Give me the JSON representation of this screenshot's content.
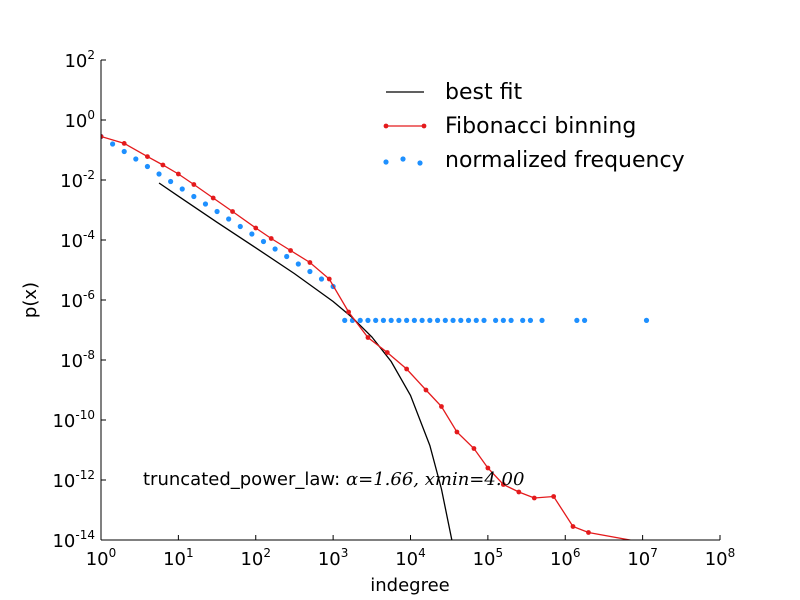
{
  "chart_data": {
    "type": "line",
    "xscale": "log",
    "yscale": "log",
    "xlabel": "indegree",
    "ylabel": "p(x)",
    "xlim_exp": [
      0,
      8
    ],
    "ylim_exp": [
      -14,
      2
    ],
    "x_ticks": [
      {
        "base": "10",
        "exp": "0"
      },
      {
        "base": "10",
        "exp": "1"
      },
      {
        "base": "10",
        "exp": "2"
      },
      {
        "base": "10",
        "exp": "3"
      },
      {
        "base": "10",
        "exp": "4"
      },
      {
        "base": "10",
        "exp": "5"
      },
      {
        "base": "10",
        "exp": "6"
      },
      {
        "base": "10",
        "exp": "7"
      },
      {
        "base": "10",
        "exp": "8"
      }
    ],
    "y_ticks": [
      {
        "base": "10",
        "exp": "2"
      },
      {
        "base": "10",
        "exp": "0"
      },
      {
        "base": "10",
        "exp": "-2"
      },
      {
        "base": "10",
        "exp": "-4"
      },
      {
        "base": "10",
        "exp": "-6"
      },
      {
        "base": "10",
        "exp": "-8"
      },
      {
        "base": "10",
        "exp": "-10"
      },
      {
        "base": "10",
        "exp": "-12"
      },
      {
        "base": "10",
        "exp": "-14"
      }
    ],
    "legend": {
      "placement": "top-right",
      "entries": [
        {
          "label": "best fit",
          "style": "line",
          "color": "#000000"
        },
        {
          "label": "Fibonacci binning",
          "style": "line-marker",
          "color": "#e41a1c"
        },
        {
          "label": "normalized frequency",
          "style": "scatter",
          "color": "#1e90ff"
        }
      ]
    },
    "annotation": {
      "prefix": "truncated_power_law: ",
      "alpha_sym": "α",
      "alpha_eq": "=1.66, ",
      "xmin_sym": "xmin",
      "xmin_eq": "=4.00"
    },
    "series": [
      {
        "name": "best fit",
        "color": "#000000",
        "log_points": [
          [
            0.75,
            -2.1
          ],
          [
            1.0,
            -2.54
          ],
          [
            1.5,
            -3.41
          ],
          [
            2.0,
            -4.26
          ],
          [
            2.5,
            -5.12
          ],
          [
            3.0,
            -6.05
          ],
          [
            3.25,
            -6.59
          ],
          [
            3.5,
            -7.23
          ],
          [
            3.75,
            -8.05
          ],
          [
            4.0,
            -9.18
          ],
          [
            4.25,
            -10.85
          ],
          [
            4.4,
            -12.3
          ],
          [
            4.55,
            -14.2
          ]
        ]
      },
      {
        "name": "Fibonacci binning",
        "color": "#e41a1c",
        "log_points": [
          [
            0.0,
            -0.55
          ],
          [
            0.3,
            -0.78
          ],
          [
            0.6,
            -1.22
          ],
          [
            0.8,
            -1.5
          ],
          [
            1.0,
            -1.8
          ],
          [
            1.2,
            -2.15
          ],
          [
            1.45,
            -2.6
          ],
          [
            1.7,
            -3.05
          ],
          [
            2.0,
            -3.6
          ],
          [
            2.2,
            -3.95
          ],
          [
            2.45,
            -4.35
          ],
          [
            2.7,
            -4.75
          ],
          [
            2.95,
            -5.3
          ],
          [
            3.2,
            -6.4
          ],
          [
            3.45,
            -7.25
          ],
          [
            3.7,
            -7.75
          ],
          [
            3.95,
            -8.3
          ],
          [
            4.2,
            -9.0
          ],
          [
            4.4,
            -9.55
          ],
          [
            4.6,
            -10.4
          ],
          [
            4.82,
            -10.95
          ],
          [
            5.0,
            -11.6
          ],
          [
            5.2,
            -12.15
          ],
          [
            5.4,
            -12.4
          ],
          [
            5.6,
            -12.6
          ],
          [
            5.85,
            -12.55
          ],
          [
            6.1,
            -13.55
          ],
          [
            6.3,
            -13.75
          ],
          [
            7.05,
            -14.1
          ]
        ]
      },
      {
        "name": "normalized frequency",
        "color": "#1e90ff",
        "floor_log_y": -6.68,
        "plateau_log_x": [
          3.15,
          3.25,
          3.35,
          3.45,
          3.55,
          3.65,
          3.75,
          3.85,
          3.95,
          4.05,
          4.15,
          4.25,
          4.35,
          4.45,
          4.55,
          4.65,
          4.75,
          4.85,
          4.95,
          5.1,
          5.2,
          5.3,
          5.45,
          5.55,
          5.7,
          6.15,
          6.25,
          7.05
        ],
        "diag_log_x": [
          0.0,
          0.15,
          0.3,
          0.45,
          0.6,
          0.75,
          0.9,
          1.05,
          1.2,
          1.35,
          1.5,
          1.65,
          1.8,
          1.95,
          2.1,
          2.25,
          2.4,
          2.55,
          2.7,
          2.85,
          3.0
        ],
        "diag_log_y": [
          -0.55,
          -0.8,
          -1.05,
          -1.3,
          -1.55,
          -1.8,
          -2.05,
          -2.3,
          -2.55,
          -2.8,
          -3.05,
          -3.3,
          -3.55,
          -3.8,
          -4.05,
          -4.3,
          -4.55,
          -4.8,
          -5.05,
          -5.3,
          -5.55
        ]
      }
    ]
  }
}
